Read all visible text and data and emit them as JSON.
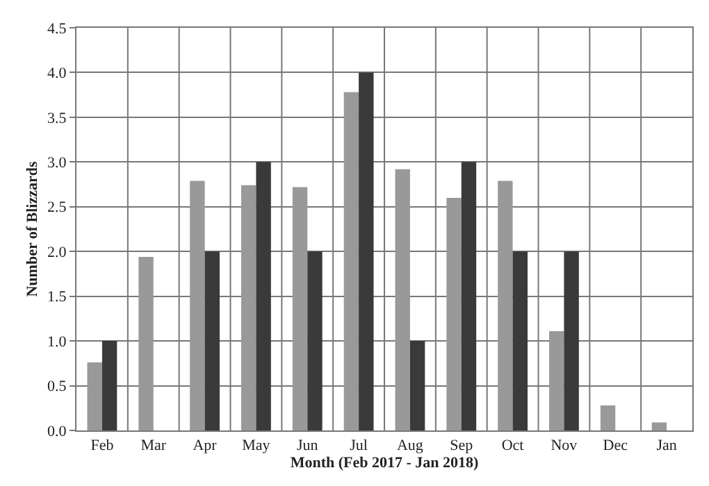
{
  "chart_data": {
    "type": "bar",
    "xlabel": "Month (Feb 2017 - Jan 2018)",
    "ylabel": "Number of Blizzards",
    "categories": [
      "Feb",
      "Mar",
      "Apr",
      "May",
      "Jun",
      "Jul",
      "Aug",
      "Sep",
      "Oct",
      "Nov",
      "Dec",
      "Jan"
    ],
    "series": [
      {
        "color": "#999999",
        "values": [
          0.76,
          1.94,
          2.79,
          2.74,
          2.72,
          3.78,
          2.92,
          2.6,
          2.79,
          1.11,
          0.28,
          0.09
        ]
      },
      {
        "color": "#3a3a3a",
        "values": [
          1,
          0,
          2,
          3,
          2,
          4,
          1,
          3,
          2,
          2,
          0,
          0
        ]
      }
    ],
    "ylim": [
      0,
      4.5
    ],
    "yticks": [
      {
        "value": 0,
        "label": "0.0"
      },
      {
        "value": 0.5,
        "label": "0.5"
      },
      {
        "value": 1,
        "label": "1.0"
      },
      {
        "value": 1.5,
        "label": "1.5"
      },
      {
        "value": 2,
        "label": "2.0"
      },
      {
        "value": 2.5,
        "label": "2.5"
      },
      {
        "value": 3,
        "label": "3.0"
      },
      {
        "value": 3.5,
        "label": "3.5"
      },
      {
        "value": 4,
        "label": "4.0"
      },
      {
        "value": 4.5,
        "label": "4.5"
      }
    ],
    "grid": true
  }
}
